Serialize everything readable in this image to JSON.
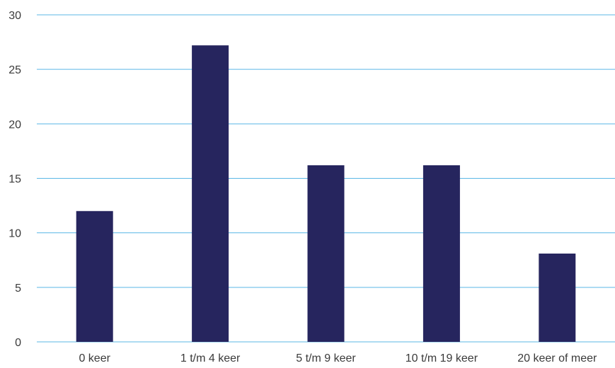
{
  "chart_data": {
    "type": "bar",
    "categories": [
      "0 keer",
      "1 t/m 4 keer",
      "5 t/m 9 keer",
      "10 t/m 19 keer",
      "20 keer of meer"
    ],
    "values": [
      12,
      27.2,
      16.2,
      16.2,
      8.1
    ],
    "title": "",
    "xlabel": "",
    "ylabel": "",
    "ylim": [
      0,
      30
    ],
    "yticks": [
      "0",
      "5",
      "10",
      "15",
      "20",
      "25",
      "30"
    ],
    "grid": true,
    "legend": "none",
    "colors": {
      "bar": "#26255e",
      "grid": "#5bb7e6",
      "axis": "#5bb7e6",
      "text": "#3a3a3a"
    }
  }
}
